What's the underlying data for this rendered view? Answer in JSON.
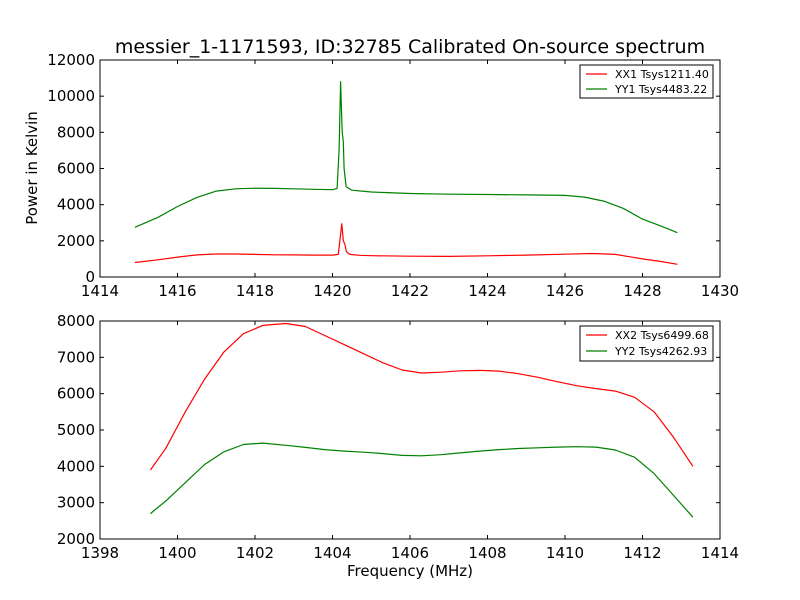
{
  "chart_data": [
    {
      "type": "line",
      "title": "messier_1-1171593, ID:32785 Calibrated On-source spectrum",
      "xlabel": "",
      "ylabel": "Power in Kelvin",
      "xlim": [
        1414,
        1430
      ],
      "ylim": [
        0,
        12000
      ],
      "xticks": [
        1414,
        1416,
        1418,
        1420,
        1422,
        1424,
        1426,
        1428,
        1430
      ],
      "yticks": [
        0,
        2000,
        4000,
        6000,
        8000,
        10000,
        12000
      ],
      "grid": false,
      "legend_position": "top-right",
      "series": [
        {
          "name": "XX1 Tsys1211.40",
          "color": "#ff0000",
          "points": [
            [
              1414.9,
              800
            ],
            [
              1415.5,
              950
            ],
            [
              1416,
              1100
            ],
            [
              1416.5,
              1220
            ],
            [
              1417,
              1270
            ],
            [
              1417.5,
              1270
            ],
            [
              1418,
              1250
            ],
            [
              1418.5,
              1230
            ],
            [
              1419,
              1220
            ],
            [
              1419.5,
              1210
            ],
            [
              1420.0,
              1210
            ],
            [
              1420.15,
              1250
            ],
            [
              1420.2,
              2200
            ],
            [
              1420.24,
              2950
            ],
            [
              1420.28,
              2000
            ],
            [
              1420.32,
              1800
            ],
            [
              1420.36,
              1400
            ],
            [
              1420.45,
              1250
            ],
            [
              1420.7,
              1200
            ],
            [
              1421,
              1180
            ],
            [
              1422,
              1150
            ],
            [
              1423,
              1140
            ],
            [
              1424,
              1170
            ],
            [
              1425,
              1210
            ],
            [
              1426,
              1260
            ],
            [
              1426.7,
              1300
            ],
            [
              1427.3,
              1250
            ],
            [
              1428,
              1000
            ],
            [
              1428.5,
              850
            ],
            [
              1428.9,
              700
            ]
          ]
        },
        {
          "name": "YY1 Tsys4483.22",
          "color": "#008000",
          "points": [
            [
              1414.9,
              2750
            ],
            [
              1415.5,
              3300
            ],
            [
              1416,
              3900
            ],
            [
              1416.5,
              4400
            ],
            [
              1417,
              4750
            ],
            [
              1417.5,
              4880
            ],
            [
              1418,
              4910
            ],
            [
              1418.5,
              4900
            ],
            [
              1419,
              4880
            ],
            [
              1419.5,
              4850
            ],
            [
              1420.0,
              4830
            ],
            [
              1420.12,
              4900
            ],
            [
              1420.17,
              7000
            ],
            [
              1420.21,
              10800
            ],
            [
              1420.25,
              8000
            ],
            [
              1420.28,
              7500
            ],
            [
              1420.3,
              6000
            ],
            [
              1420.35,
              5000
            ],
            [
              1420.5,
              4800
            ],
            [
              1421,
              4700
            ],
            [
              1422,
              4620
            ],
            [
              1423,
              4580
            ],
            [
              1424,
              4560
            ],
            [
              1425,
              4540
            ],
            [
              1426,
              4510
            ],
            [
              1426.5,
              4420
            ],
            [
              1427,
              4200
            ],
            [
              1427.5,
              3800
            ],
            [
              1428,
              3200
            ],
            [
              1428.5,
              2800
            ],
            [
              1428.9,
              2450
            ]
          ]
        }
      ]
    },
    {
      "type": "line",
      "title": "",
      "xlabel": "Frequency (MHz)",
      "ylabel": "",
      "xlim": [
        1398,
        1414
      ],
      "ylim": [
        2000,
        8000
      ],
      "xticks": [
        1398,
        1400,
        1402,
        1404,
        1406,
        1408,
        1410,
        1412,
        1414
      ],
      "yticks": [
        2000,
        3000,
        4000,
        5000,
        6000,
        7000,
        8000
      ],
      "grid": false,
      "legend_position": "top-right",
      "series": [
        {
          "name": "XX2 Tsys6499.68",
          "color": "#ff0000",
          "points": [
            [
              1399.3,
              3900
            ],
            [
              1399.7,
              4500
            ],
            [
              1400.2,
              5500
            ],
            [
              1400.7,
              6400
            ],
            [
              1401.2,
              7150
            ],
            [
              1401.7,
              7650
            ],
            [
              1402.2,
              7880
            ],
            [
              1402.8,
              7930
            ],
            [
              1403.3,
              7850
            ],
            [
              1403.8,
              7600
            ],
            [
              1404.3,
              7350
            ],
            [
              1404.8,
              7100
            ],
            [
              1405.3,
              6850
            ],
            [
              1405.8,
              6650
            ],
            [
              1406.3,
              6570
            ],
            [
              1406.8,
              6590
            ],
            [
              1407.3,
              6630
            ],
            [
              1407.8,
              6640
            ],
            [
              1408.3,
              6620
            ],
            [
              1408.8,
              6550
            ],
            [
              1409.3,
              6450
            ],
            [
              1409.8,
              6330
            ],
            [
              1410.3,
              6220
            ],
            [
              1410.8,
              6140
            ],
            [
              1411.3,
              6070
            ],
            [
              1411.8,
              5900
            ],
            [
              1412.3,
              5500
            ],
            [
              1412.8,
              4800
            ],
            [
              1413.3,
              4000
            ]
          ]
        },
        {
          "name": "YY2 Tsys4262.93",
          "color": "#008000",
          "points": [
            [
              1399.3,
              2700
            ],
            [
              1399.7,
              3050
            ],
            [
              1400.2,
              3550
            ],
            [
              1400.7,
              4050
            ],
            [
              1401.2,
              4400
            ],
            [
              1401.7,
              4600
            ],
            [
              1402.2,
              4640
            ],
            [
              1402.8,
              4580
            ],
            [
              1403.3,
              4520
            ],
            [
              1403.8,
              4460
            ],
            [
              1404.3,
              4420
            ],
            [
              1404.8,
              4390
            ],
            [
              1405.3,
              4350
            ],
            [
              1405.8,
              4300
            ],
            [
              1406.3,
              4290
            ],
            [
              1406.8,
              4320
            ],
            [
              1407.3,
              4370
            ],
            [
              1407.8,
              4420
            ],
            [
              1408.3,
              4460
            ],
            [
              1408.8,
              4490
            ],
            [
              1409.3,
              4510
            ],
            [
              1409.8,
              4530
            ],
            [
              1410.3,
              4540
            ],
            [
              1410.8,
              4530
            ],
            [
              1411.3,
              4450
            ],
            [
              1411.8,
              4250
            ],
            [
              1412.3,
              3800
            ],
            [
              1412.8,
              3200
            ],
            [
              1413.3,
              2600
            ]
          ]
        }
      ]
    }
  ]
}
